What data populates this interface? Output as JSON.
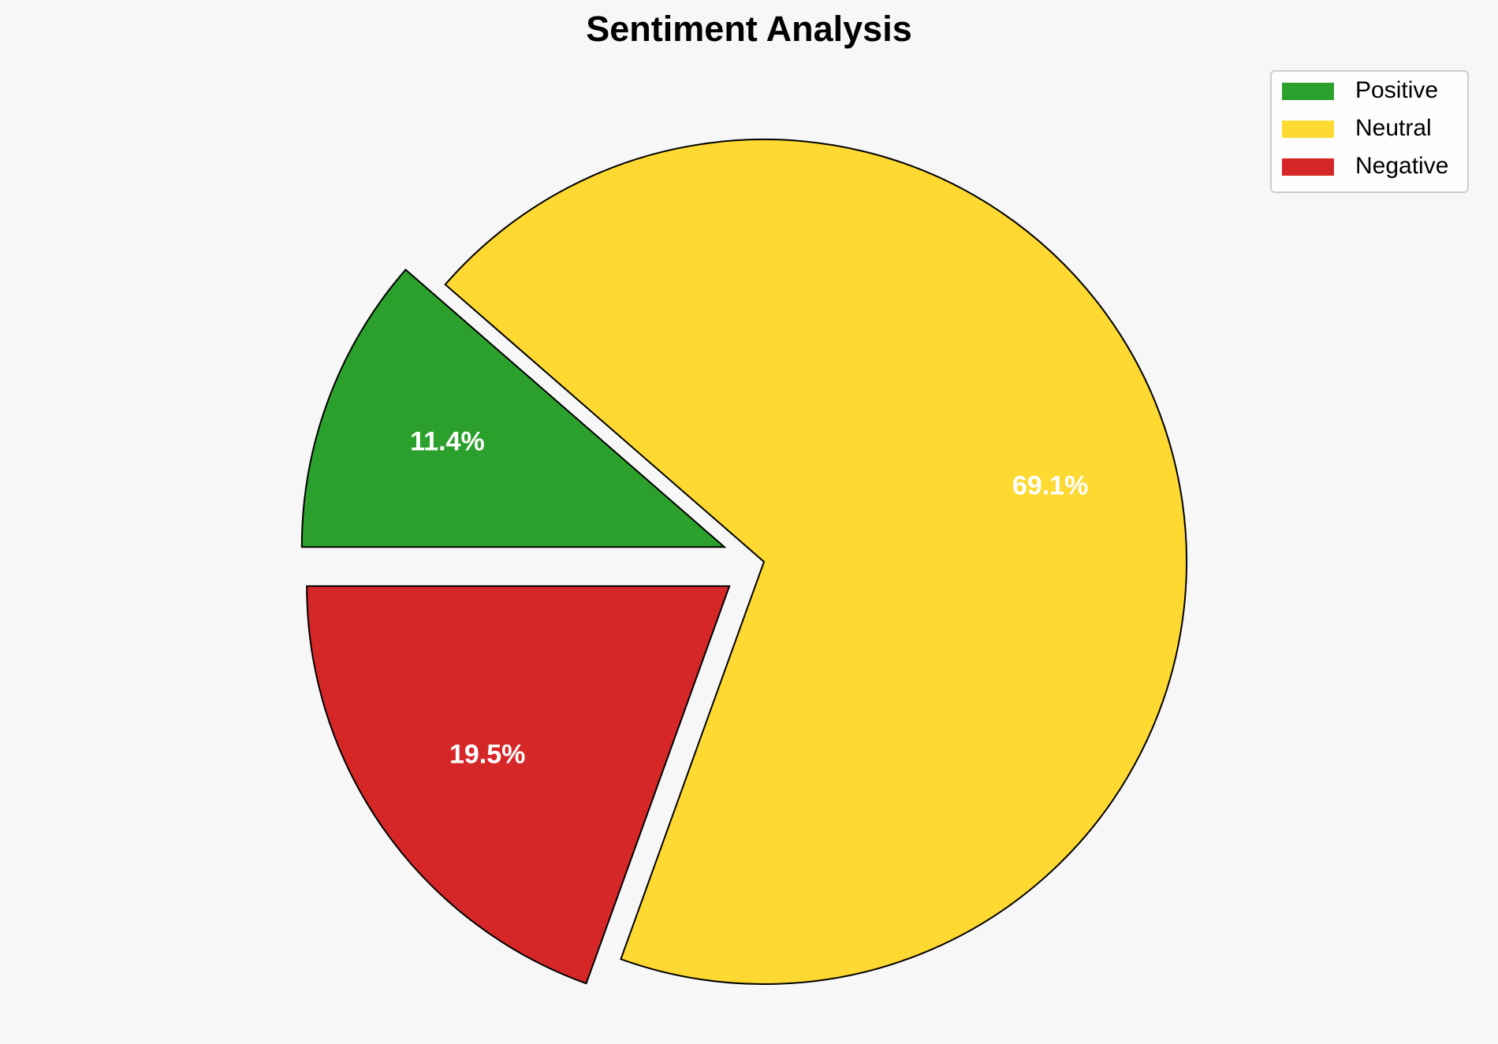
{
  "chart_data": {
    "type": "pie",
    "title": "Sentiment Analysis",
    "categories": [
      "Positive",
      "Neutral",
      "Negative"
    ],
    "values": [
      11.4,
      69.1,
      19.5
    ],
    "value_labels": [
      "11.4%",
      "69.1%",
      "19.5%"
    ],
    "colors": [
      "#2ca02c",
      "#fdd931",
      "#d62728"
    ],
    "explode": [
      0.1,
      0,
      0.1
    ],
    "legend": "upper right"
  }
}
